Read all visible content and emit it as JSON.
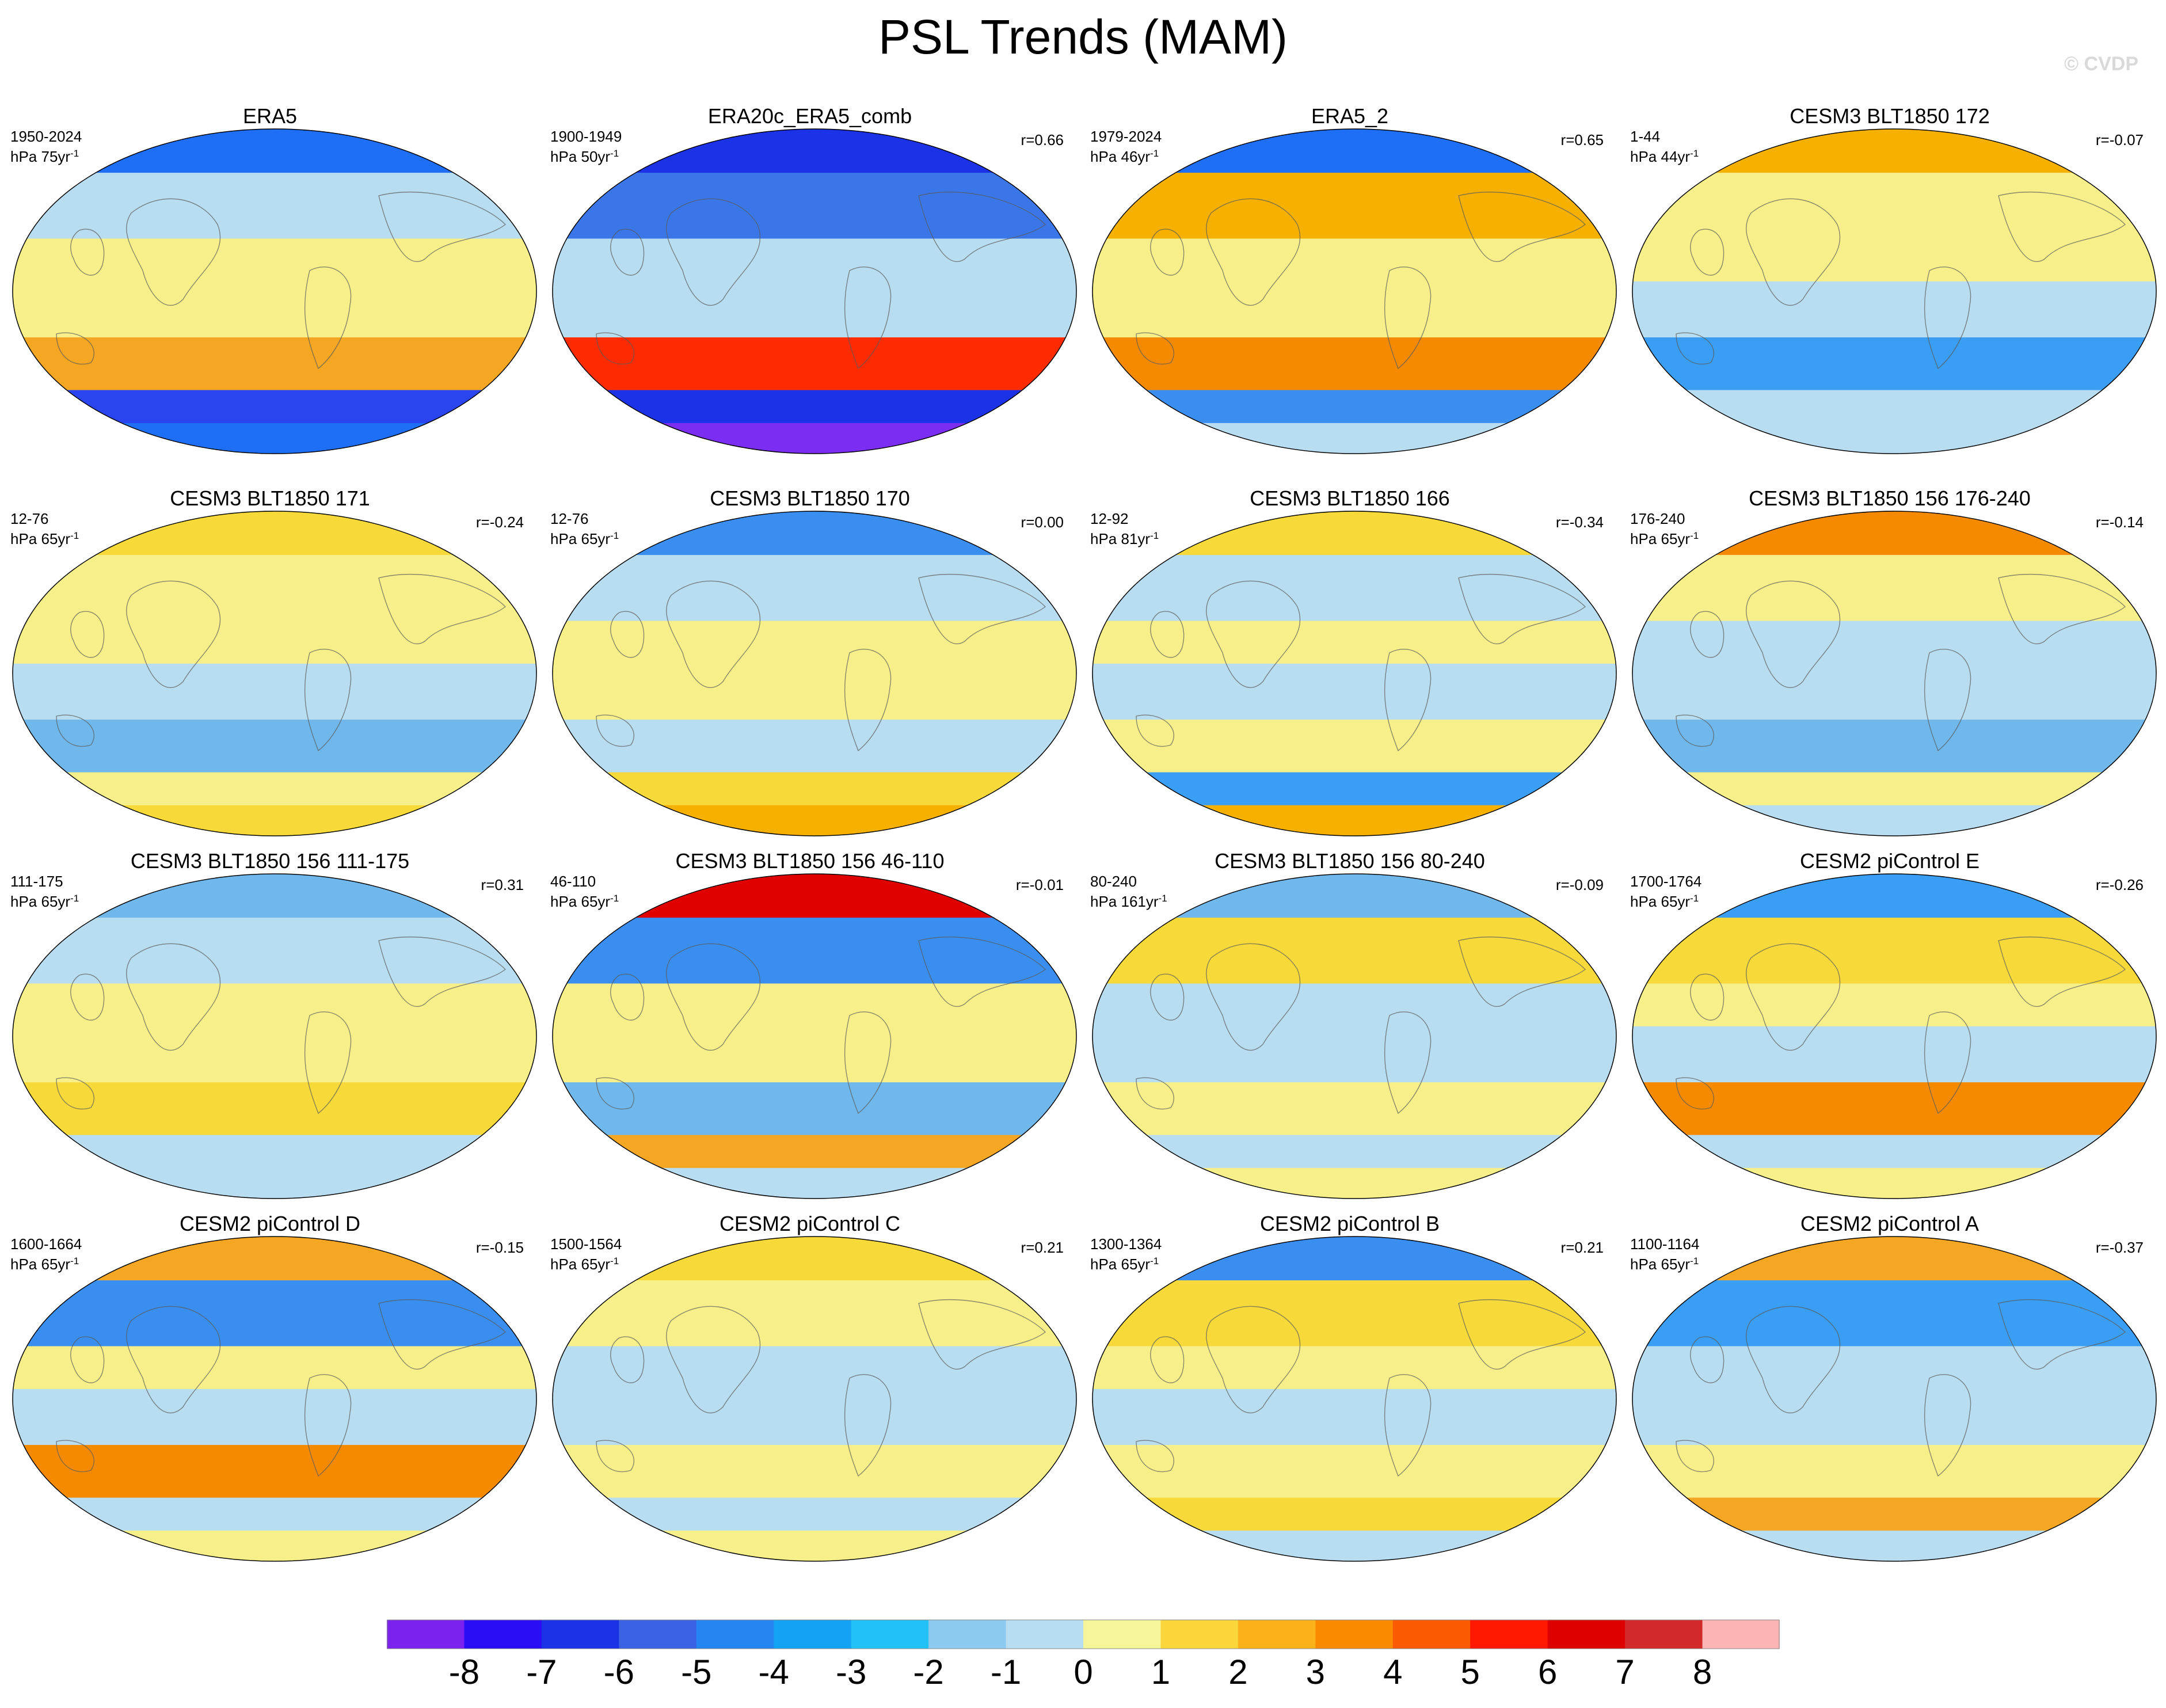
{
  "title": "PSL Trends (MAM)",
  "watermark": "© CVDP",
  "panels": [
    {
      "name": "ERA5",
      "period": "1950-2024",
      "units": "hPa",
      "years": "75yr",
      "exponent": "-1",
      "r": "",
      "colors": {
        "npole": "#1e6ff5",
        "nlat": "#b8dcf0",
        "nhi": "#f7f08a",
        "trop": "#f7f08a",
        "slat": "#f5a623",
        "shi": "#2a44f0",
        "spole": "#1e6ff5"
      }
    },
    {
      "name": "ERA20c_ERA5_comb",
      "period": "1900-1949",
      "units": "hPa",
      "years": "50yr",
      "exponent": "-1",
      "r": "r=0.66",
      "colors": {
        "npole": "#1c32e6",
        "nlat": "#3a76e8",
        "nhi": "#b8dcf0",
        "trop": "#b8dcf0",
        "slat": "#ff2b00",
        "shi": "#1c32e6",
        "spole": "#7b2ef2"
      }
    },
    {
      "name": "ERA5_2",
      "period": "1979-2024",
      "units": "hPa",
      "years": "46yr",
      "exponent": "-1",
      "r": "r=0.65",
      "colors": {
        "npole": "#1e6ff5",
        "nlat": "#f5b000",
        "nhi": "#f7f08a",
        "trop": "#f7f08a",
        "slat": "#f58a00",
        "shi": "#3a8ef0",
        "spole": "#b8dcf0"
      }
    },
    {
      "name": "CESM3 BLT1850 172",
      "period": "1-44",
      "units": "hPa",
      "years": "44yr",
      "exponent": "-1",
      "r": "r=-0.07",
      "colors": {
        "npole": "#f5b000",
        "nlat": "#f7f08a",
        "nhi": "#f7f08a",
        "trop": "#b8dcf0",
        "slat": "#3a9ef5",
        "shi": "#b8dcf0",
        "spole": "#b8dcf0"
      }
    },
    {
      "name": "CESM3 BLT1850 171",
      "period": "12-76",
      "units": "hPa",
      "years": "65yr",
      "exponent": "-1",
      "r": "r=-0.24",
      "colors": {
        "npole": "#f7d93a",
        "nlat": "#f7f08a",
        "nhi": "#f7f08a",
        "trop": "#b8dcf0",
        "slat": "#70b8ec",
        "shi": "#f7f08a",
        "spole": "#f7d93a"
      }
    },
    {
      "name": "CESM3 BLT1850 170",
      "period": "12-76",
      "units": "hPa",
      "years": "65yr",
      "exponent": "-1",
      "r": "r=0.00",
      "colors": {
        "npole": "#3a8ef0",
        "nlat": "#b8dcf0",
        "nhi": "#f7f08a",
        "trop": "#f7f08a",
        "slat": "#b8dcf0",
        "shi": "#f7d93a",
        "spole": "#f5b000"
      }
    },
    {
      "name": "CESM3 BLT1850 166",
      "period": "12-92",
      "units": "hPa",
      "years": "81yr",
      "exponent": "-1",
      "r": "r=-0.34",
      "colors": {
        "npole": "#f7d93a",
        "nlat": "#b8dcf0",
        "nhi": "#f7f08a",
        "trop": "#b8dcf0",
        "slat": "#f7f08a",
        "shi": "#3a9ef5",
        "spole": "#f5b000"
      }
    },
    {
      "name": "CESM3 BLT1850 156 176-240",
      "period": "176-240",
      "units": "hPa",
      "years": "65yr",
      "exponent": "-1",
      "r": "r=-0.14",
      "colors": {
        "npole": "#f58a00",
        "nlat": "#f7f08a",
        "nhi": "#b8dcf0",
        "trop": "#b8dcf0",
        "slat": "#70b8ec",
        "shi": "#f7f08a",
        "spole": "#b8dcf0"
      }
    },
    {
      "name": "CESM3 BLT1850 156 111-175",
      "period": "111-175",
      "units": "hPa",
      "years": "65yr",
      "exponent": "-1",
      "r": "r=0.31",
      "colors": {
        "npole": "#70b8ec",
        "nlat": "#b8dcf0",
        "nhi": "#f7f08a",
        "trop": "#f7f08a",
        "slat": "#f7d93a",
        "shi": "#b8dcf0",
        "spole": "#b8dcf0"
      }
    },
    {
      "name": "CESM3 BLT1850 156 46-110",
      "period": "46-110",
      "units": "hPa",
      "years": "65yr",
      "exponent": "-1",
      "r": "r=-0.01",
      "colors": {
        "npole": "#e00000",
        "nlat": "#3a8ef0",
        "nhi": "#f7f08a",
        "trop": "#f7f08a",
        "slat": "#70b8ec",
        "shi": "#f5a623",
        "spole": "#b8dcf0"
      }
    },
    {
      "name": "CESM3 BLT1850 156 80-240",
      "period": "80-240",
      "units": "hPa",
      "years": "161yr",
      "exponent": "-1",
      "r": "r=-0.09",
      "colors": {
        "npole": "#70b8ec",
        "nlat": "#f7d93a",
        "nhi": "#b8dcf0",
        "trop": "#b8dcf0",
        "slat": "#f7f08a",
        "shi": "#b8dcf0",
        "spole": "#f7f08a"
      }
    },
    {
      "name": "CESM2 piControl E",
      "period": "1700-1764",
      "units": "hPa",
      "years": "65yr",
      "exponent": "-1",
      "r": "r=-0.26",
      "colors": {
        "npole": "#3a9ef5",
        "nlat": "#f7d93a",
        "nhi": "#f7f08a",
        "trop": "#b8dcf0",
        "slat": "#f58a00",
        "shi": "#b8dcf0",
        "spole": "#f7f08a"
      }
    },
    {
      "name": "CESM2 piControl D",
      "period": "1600-1664",
      "units": "hPa",
      "years": "65yr",
      "exponent": "-1",
      "r": "r=-0.15",
      "colors": {
        "npole": "#f5a623",
        "nlat": "#3a8ef0",
        "nhi": "#f7f08a",
        "trop": "#b8dcf0",
        "slat": "#f58a00",
        "shi": "#b8dcf0",
        "spole": "#f7f08a"
      }
    },
    {
      "name": "CESM2 piControl C",
      "period": "1500-1564",
      "units": "hPa",
      "years": "65yr",
      "exponent": "-1",
      "r": "r=0.21",
      "colors": {
        "npole": "#f7d93a",
        "nlat": "#f7f08a",
        "nhi": "#b8dcf0",
        "trop": "#b8dcf0",
        "slat": "#f7f08a",
        "shi": "#b8dcf0",
        "spole": "#f7f08a"
      }
    },
    {
      "name": "CESM2 piControl B",
      "period": "1300-1364",
      "units": "hPa",
      "years": "65yr",
      "exponent": "-1",
      "r": "r=0.21",
      "colors": {
        "npole": "#3a8ef0",
        "nlat": "#f7d93a",
        "nhi": "#f7f08a",
        "trop": "#b8dcf0",
        "slat": "#f7f08a",
        "shi": "#f7d93a",
        "spole": "#b8dcf0"
      }
    },
    {
      "name": "CESM2 piControl A",
      "period": "1100-1164",
      "units": "hPa",
      "years": "65yr",
      "exponent": "-1",
      "r": "r=-0.37",
      "colors": {
        "npole": "#f5a623",
        "nlat": "#3a9ef5",
        "nhi": "#b8dcf0",
        "trop": "#b8dcf0",
        "slat": "#f7f08a",
        "shi": "#f5a623",
        "spole": "#b8dcf0"
      }
    }
  ],
  "chart_data": {
    "type": "heatmap",
    "title": "PSL Trends (MAM)",
    "variable": "sea level pressure trend",
    "units": "hPa per period",
    "projection": "global Robinson-style map",
    "layout_grid": "4 rows x 4 columns",
    "colorbar": {
      "levels": [
        -8,
        -7,
        -6,
        -5,
        -4,
        -3,
        -2,
        -1,
        0,
        1,
        2,
        3,
        4,
        5,
        6,
        7,
        8
      ],
      "colors": [
        "#7b22ee",
        "#2a0cf5",
        "#1c32e6",
        "#3a62e2",
        "#2586f2",
        "#14a2f5",
        "#22c2f8",
        "#8ccaf0",
        "#b8dcf0",
        "#f7f59a",
        "#fbd63a",
        "#fbb21a",
        "#fb8a00",
        "#fb5a00",
        "#ff1800",
        "#de0000",
        "#d22a2a",
        "#fcb4b4"
      ]
    }
  }
}
